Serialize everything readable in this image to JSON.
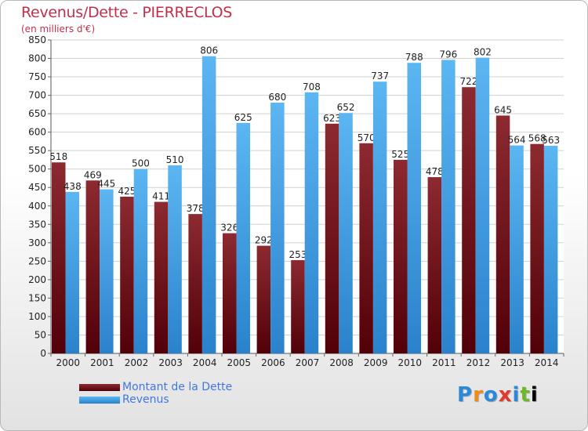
{
  "chart_data": {
    "type": "bar",
    "title": "Revenus/Dette - PIERRECLOS",
    "subtitle": "(en milliers d'€)",
    "categories": [
      "2000",
      "2001",
      "2002",
      "2003",
      "2004",
      "2005",
      "2006",
      "2007",
      "2008",
      "2009",
      "2010",
      "2011",
      "2012",
      "2013",
      "2014"
    ],
    "series": [
      {
        "name": "Montant de la Dette",
        "color": "#7a1c22",
        "values": [
          518,
          469,
          425,
          411,
          378,
          326,
          292,
          253,
          623,
          570,
          525,
          478,
          722,
          645,
          568
        ]
      },
      {
        "name": "Revenus",
        "color": "#3a9ee6",
        "values": [
          438,
          445,
          500,
          510,
          806,
          625,
          680,
          708,
          652,
          737,
          788,
          796,
          802,
          564,
          563
        ]
      }
    ],
    "ylim": [
      0,
      850
    ],
    "yticks": [
      0,
      50,
      100,
      150,
      200,
      250,
      300,
      350,
      400,
      450,
      500,
      550,
      600,
      650,
      700,
      750,
      800,
      850
    ],
    "grid": true,
    "legend_position": "bottom-left"
  },
  "logo_text": "Proxiti"
}
